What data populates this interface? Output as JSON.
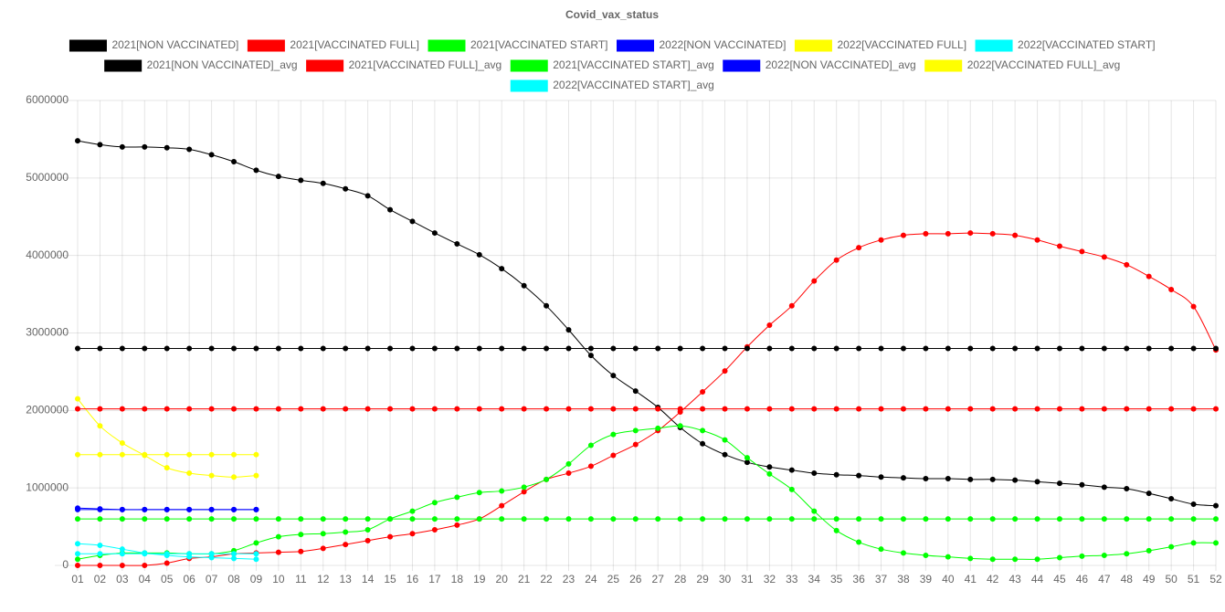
{
  "chart_data": {
    "type": "line",
    "title": "Covid_vax_status",
    "categories": [
      "01",
      "02",
      "03",
      "04",
      "05",
      "06",
      "07",
      "08",
      "09",
      "10",
      "11",
      "12",
      "13",
      "14",
      "15",
      "16",
      "17",
      "18",
      "19",
      "20",
      "21",
      "22",
      "23",
      "24",
      "25",
      "26",
      "27",
      "28",
      "29",
      "30",
      "31",
      "32",
      "33",
      "34",
      "35",
      "36",
      "37",
      "38",
      "39",
      "40",
      "41",
      "42",
      "43",
      "44",
      "45",
      "46",
      "47",
      "48",
      "49",
      "50",
      "51",
      "52"
    ],
    "ylim": [
      0,
      6000000
    ],
    "yticks": [
      0,
      1000000,
      2000000,
      3000000,
      4000000,
      5000000,
      6000000
    ],
    "grid": true,
    "legend": "top",
    "series": [
      {
        "name": "2021[NON VACCINATED]",
        "color": "#000000",
        "values": [
          5480000,
          5430000,
          5400000,
          5400000,
          5390000,
          5370000,
          5300000,
          5210000,
          5100000,
          5020000,
          4970000,
          4930000,
          4860000,
          4770000,
          4590000,
          4440000,
          4290000,
          4150000,
          4010000,
          3830000,
          3610000,
          3350000,
          3040000,
          2710000,
          2450000,
          2250000,
          2040000,
          1780000,
          1570000,
          1430000,
          1330000,
          1270000,
          1230000,
          1190000,
          1170000,
          1160000,
          1140000,
          1130000,
          1120000,
          1120000,
          1110000,
          1110000,
          1100000,
          1080000,
          1060000,
          1040000,
          1010000,
          990000,
          930000,
          860000,
          790000,
          770000
        ]
      },
      {
        "name": "2021[VACCINATED FULL]",
        "color": "#ff0000",
        "values": [
          0,
          0,
          0,
          0,
          30000,
          90000,
          110000,
          150000,
          160000,
          170000,
          180000,
          220000,
          270000,
          320000,
          370000,
          410000,
          460000,
          520000,
          600000,
          770000,
          950000,
          1110000,
          1190000,
          1280000,
          1420000,
          1560000,
          1740000,
          1980000,
          2240000,
          2510000,
          2820000,
          3100000,
          3350000,
          3670000,
          3940000,
          4100000,
          4200000,
          4260000,
          4280000,
          4280000,
          4290000,
          4280000,
          4260000,
          4200000,
          4120000,
          4050000,
          3980000,
          3880000,
          3730000,
          3560000,
          3340000,
          2780000
        ]
      },
      {
        "name": "2021[VACCINATED START]",
        "color": "#00ff00",
        "values": [
          80000,
          130000,
          160000,
          160000,
          160000,
          150000,
          150000,
          190000,
          290000,
          370000,
          400000,
          410000,
          430000,
          460000,
          600000,
          700000,
          810000,
          880000,
          940000,
          960000,
          1010000,
          1110000,
          1310000,
          1550000,
          1690000,
          1740000,
          1770000,
          1800000,
          1740000,
          1620000,
          1390000,
          1180000,
          980000,
          700000,
          450000,
          300000,
          210000,
          160000,
          130000,
          110000,
          90000,
          80000,
          80000,
          80000,
          100000,
          120000,
          130000,
          150000,
          190000,
          240000,
          290000,
          290000
        ]
      },
      {
        "name": "2022[NON VACCINATED]",
        "color": "#0000ff",
        "values": [
          740000,
          730000,
          720000,
          720000,
          720000,
          720000,
          720000,
          720000,
          720000,
          null,
          null,
          null,
          null,
          null,
          null,
          null,
          null,
          null,
          null,
          null,
          null,
          null,
          null,
          null,
          null,
          null,
          null,
          null,
          null,
          null,
          null,
          null,
          null,
          null,
          null,
          null,
          null,
          null,
          null,
          null,
          null,
          null,
          null,
          null,
          null,
          null,
          null,
          null,
          null,
          null,
          null,
          null
        ]
      },
      {
        "name": "2022[VACCINATED FULL]",
        "color": "#ffff00",
        "values": [
          2150000,
          1800000,
          1580000,
          1420000,
          1260000,
          1190000,
          1160000,
          1140000,
          1160000,
          null,
          null,
          null,
          null,
          null,
          null,
          null,
          null,
          null,
          null,
          null,
          null,
          null,
          null,
          null,
          null,
          null,
          null,
          null,
          null,
          null,
          null,
          null,
          null,
          null,
          null,
          null,
          null,
          null,
          null,
          null,
          null,
          null,
          null,
          null,
          null,
          null,
          null,
          null,
          null,
          null,
          null,
          null
        ]
      },
      {
        "name": "2022[VACCINATED START]",
        "color": "#00ffff",
        "values": [
          280000,
          260000,
          210000,
          160000,
          130000,
          110000,
          100000,
          90000,
          80000,
          null,
          null,
          null,
          null,
          null,
          null,
          null,
          null,
          null,
          null,
          null,
          null,
          null,
          null,
          null,
          null,
          null,
          null,
          null,
          null,
          null,
          null,
          null,
          null,
          null,
          null,
          null,
          null,
          null,
          null,
          null,
          null,
          null,
          null,
          null,
          null,
          null,
          null,
          null,
          null,
          null,
          null,
          null
        ]
      },
      {
        "name": "2021[NON VACCINATED]_avg",
        "color": "#000000",
        "values": [
          2800000,
          2800000,
          2800000,
          2800000,
          2800000,
          2800000,
          2800000,
          2800000,
          2800000,
          2800000,
          2800000,
          2800000,
          2800000,
          2800000,
          2800000,
          2800000,
          2800000,
          2800000,
          2800000,
          2800000,
          2800000,
          2800000,
          2800000,
          2800000,
          2800000,
          2800000,
          2800000,
          2800000,
          2800000,
          2800000,
          2800000,
          2800000,
          2800000,
          2800000,
          2800000,
          2800000,
          2800000,
          2800000,
          2800000,
          2800000,
          2800000,
          2800000,
          2800000,
          2800000,
          2800000,
          2800000,
          2800000,
          2800000,
          2800000,
          2800000,
          2800000,
          2800000
        ]
      },
      {
        "name": "2021[VACCINATED FULL]_avg",
        "color": "#ff0000",
        "values": [
          2020000,
          2020000,
          2020000,
          2020000,
          2020000,
          2020000,
          2020000,
          2020000,
          2020000,
          2020000,
          2020000,
          2020000,
          2020000,
          2020000,
          2020000,
          2020000,
          2020000,
          2020000,
          2020000,
          2020000,
          2020000,
          2020000,
          2020000,
          2020000,
          2020000,
          2020000,
          2020000,
          2020000,
          2020000,
          2020000,
          2020000,
          2020000,
          2020000,
          2020000,
          2020000,
          2020000,
          2020000,
          2020000,
          2020000,
          2020000,
          2020000,
          2020000,
          2020000,
          2020000,
          2020000,
          2020000,
          2020000,
          2020000,
          2020000,
          2020000,
          2020000,
          2020000
        ]
      },
      {
        "name": "2021[VACCINATED START]_avg",
        "color": "#00ff00",
        "values": [
          600000,
          600000,
          600000,
          600000,
          600000,
          600000,
          600000,
          600000,
          600000,
          600000,
          600000,
          600000,
          600000,
          600000,
          600000,
          600000,
          600000,
          600000,
          600000,
          600000,
          600000,
          600000,
          600000,
          600000,
          600000,
          600000,
          600000,
          600000,
          600000,
          600000,
          600000,
          600000,
          600000,
          600000,
          600000,
          600000,
          600000,
          600000,
          600000,
          600000,
          600000,
          600000,
          600000,
          600000,
          600000,
          600000,
          600000,
          600000,
          600000,
          600000,
          600000,
          600000
        ]
      },
      {
        "name": "2022[NON VACCINATED]_avg",
        "color": "#0000ff",
        "values": [
          720000,
          720000,
          720000,
          720000,
          720000,
          720000,
          720000,
          720000,
          720000,
          null,
          null,
          null,
          null,
          null,
          null,
          null,
          null,
          null,
          null,
          null,
          null,
          null,
          null,
          null,
          null,
          null,
          null,
          null,
          null,
          null,
          null,
          null,
          null,
          null,
          null,
          null,
          null,
          null,
          null,
          null,
          null,
          null,
          null,
          null,
          null,
          null,
          null,
          null,
          null,
          null,
          null,
          null
        ]
      },
      {
        "name": "2022[VACCINATED FULL]_avg",
        "color": "#ffff00",
        "values": [
          1430000,
          1430000,
          1430000,
          1430000,
          1430000,
          1430000,
          1430000,
          1430000,
          1430000,
          null,
          null,
          null,
          null,
          null,
          null,
          null,
          null,
          null,
          null,
          null,
          null,
          null,
          null,
          null,
          null,
          null,
          null,
          null,
          null,
          null,
          null,
          null,
          null,
          null,
          null,
          null,
          null,
          null,
          null,
          null,
          null,
          null,
          null,
          null,
          null,
          null,
          null,
          null,
          null,
          null,
          null,
          null
        ]
      },
      {
        "name": "2022[VACCINATED START]_avg",
        "color": "#00ffff",
        "values": [
          150000,
          150000,
          150000,
          150000,
          150000,
          150000,
          150000,
          150000,
          150000,
          null,
          null,
          null,
          null,
          null,
          null,
          null,
          null,
          null,
          null,
          null,
          null,
          null,
          null,
          null,
          null,
          null,
          null,
          null,
          null,
          null,
          null,
          null,
          null,
          null,
          null,
          null,
          null,
          null,
          null,
          null,
          null,
          null,
          null,
          null,
          null,
          null,
          null,
          null,
          null,
          null,
          null,
          null
        ]
      }
    ]
  }
}
